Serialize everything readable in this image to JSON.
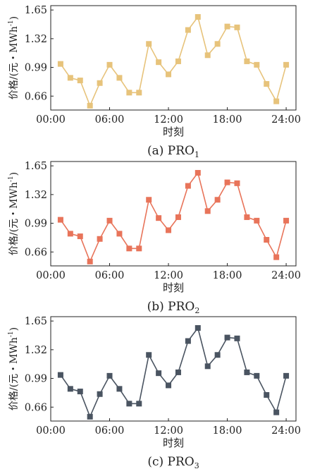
{
  "chart_data": [
    {
      "type": "line",
      "panel": "a",
      "caption_prefix": "(a) PRO",
      "caption_sub": "1",
      "color": "#E7C37B",
      "xlabel": "时刻",
      "ylabel": "价格/(元・MWh",
      "ylabel_sup": "-1",
      "ylabel_close": ")",
      "x_ticks": [
        "00:00",
        "06:00",
        "12:00",
        "18:00",
        "24:00"
      ],
      "y_ticks": [
        "0.66",
        "0.99",
        "1.32",
        "1.65"
      ],
      "ylim": [
        0.5,
        1.7
      ],
      "x": [
        1,
        2,
        3,
        4,
        5,
        6,
        7,
        8,
        9,
        10,
        11,
        12,
        13,
        14,
        15,
        16,
        17,
        18,
        19,
        20,
        21,
        22,
        23,
        24
      ],
      "values": [
        1.03,
        0.87,
        0.84,
        0.55,
        0.81,
        1.02,
        0.87,
        0.7,
        0.7,
        1.26,
        1.05,
        0.91,
        1.06,
        1.42,
        1.57,
        1.13,
        1.26,
        1.46,
        1.45,
        1.06,
        1.02,
        0.8,
        0.6,
        1.02
      ]
    },
    {
      "type": "line",
      "panel": "b",
      "caption_prefix": "(b) PRO",
      "caption_sub": "2",
      "color": "#E8745A",
      "xlabel": "时刻",
      "ylabel": "价格/(元・MWh",
      "ylabel_sup": "-1",
      "ylabel_close": ")",
      "x_ticks": [
        "00:00",
        "06:00",
        "12:00",
        "18:00",
        "24:00"
      ],
      "y_ticks": [
        "0.66",
        "0.99",
        "1.32",
        "1.65"
      ],
      "ylim": [
        0.5,
        1.7
      ],
      "x": [
        1,
        2,
        3,
        4,
        5,
        6,
        7,
        8,
        9,
        10,
        11,
        12,
        13,
        14,
        15,
        16,
        17,
        18,
        19,
        20,
        21,
        22,
        23,
        24
      ],
      "values": [
        1.03,
        0.87,
        0.84,
        0.55,
        0.81,
        1.02,
        0.87,
        0.7,
        0.7,
        1.26,
        1.05,
        0.91,
        1.06,
        1.42,
        1.57,
        1.13,
        1.26,
        1.46,
        1.45,
        1.06,
        1.02,
        0.8,
        0.6,
        1.02
      ]
    },
    {
      "type": "line",
      "panel": "c",
      "caption_prefix": "(c) PRO",
      "caption_sub": "3",
      "color": "#4A5461",
      "xlabel": "时刻",
      "ylabel": "价格/(元・MWh",
      "ylabel_sup": "-1",
      "ylabel_close": ")",
      "x_ticks": [
        "00:00",
        "06:00",
        "12:00",
        "18:00",
        "24:00"
      ],
      "y_ticks": [
        "0.66",
        "0.99",
        "1.32",
        "1.65"
      ],
      "ylim": [
        0.5,
        1.7
      ],
      "x": [
        1,
        2,
        3,
        4,
        5,
        6,
        7,
        8,
        9,
        10,
        11,
        12,
        13,
        14,
        15,
        16,
        17,
        18,
        19,
        20,
        21,
        22,
        23,
        24
      ],
      "values": [
        1.03,
        0.87,
        0.84,
        0.55,
        0.81,
        1.02,
        0.87,
        0.7,
        0.7,
        1.26,
        1.05,
        0.91,
        1.06,
        1.42,
        1.57,
        1.13,
        1.26,
        1.46,
        1.45,
        1.06,
        1.02,
        0.8,
        0.6,
        1.02
      ]
    }
  ]
}
